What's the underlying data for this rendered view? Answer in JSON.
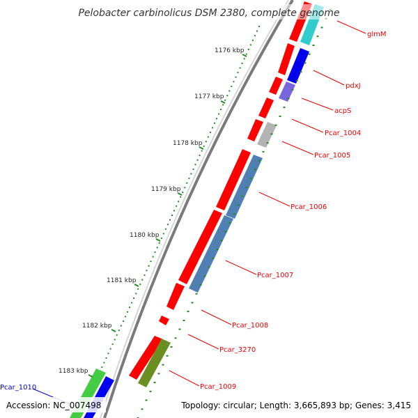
{
  "title": "Pelobacter carbinolicus DSM 2380, complete genome",
  "footer": {
    "accession": "Accession: NC_007498",
    "topology": "Topology: circular; Length: 3,665,893 bp; Genes: 3,415"
  },
  "scale": {
    "ticks": [
      "1176 kbp",
      "1177 kbp",
      "1178 kbp",
      "1179 kbp",
      "1180 kbp",
      "1181 kbp",
      "1182 kbp",
      "1183 kbp"
    ]
  },
  "gene_labels": [
    {
      "id": "glmM",
      "text": "glmM",
      "color": "#ee0000"
    },
    {
      "id": "pdxJ",
      "text": "pdxJ",
      "color": "#ee0000"
    },
    {
      "id": "acpS",
      "text": "acpS",
      "color": "#ee0000"
    },
    {
      "id": "pcar1004",
      "text": "Pcar_1004",
      "color": "#ee0000"
    },
    {
      "id": "pcar1005",
      "text": "Pcar_1005",
      "color": "#ee0000"
    },
    {
      "id": "pcar1006",
      "text": "Pcar_1006",
      "color": "#ee0000"
    },
    {
      "id": "pcar1007",
      "text": "Pcar_1007",
      "color": "#ee0000"
    },
    {
      "id": "pcar1008",
      "text": "Pcar_1008",
      "color": "#ee0000"
    },
    {
      "id": "pcar3270",
      "text": "Pcar_3270",
      "color": "#ee0000"
    },
    {
      "id": "pcar1009",
      "text": "Pcar_1009",
      "color": "#ee0000"
    },
    {
      "id": "pcar1010",
      "text": "Pcar_1010",
      "color": "#0000cc"
    }
  ],
  "colors": {
    "cds": "#ff0000",
    "cog_teal": "#33cccc",
    "cog_blue": "#0000ee",
    "cog_violet": "#7766dd",
    "cog_gray": "#b3b3b3",
    "cog_steel": "#4f7fb3",
    "cog_olive": "#6b8e23",
    "cog_green": "#44cc44",
    "backbone": "#888888",
    "gc_skew": "#228b22"
  }
}
